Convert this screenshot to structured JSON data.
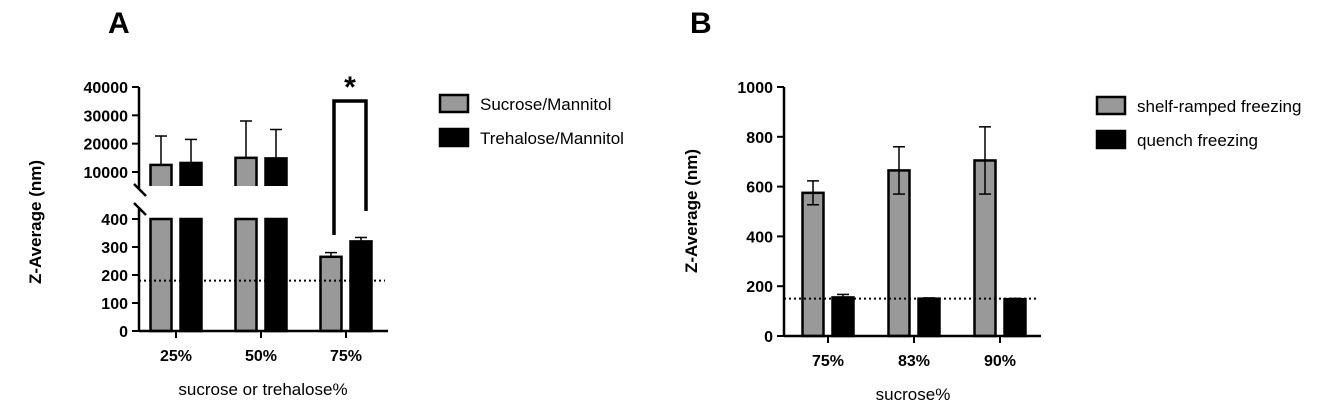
{
  "chart_data": [
    {
      "panel": "A",
      "type": "bar",
      "categories": [
        "25%",
        "50%",
        "75%"
      ],
      "xlabel": "sucrose or trehalose%",
      "ylabel": "Z-Average (nm)",
      "broken_axis": true,
      "ylim_lower": [
        0,
        400
      ],
      "ylim_upper": [
        10000,
        40000
      ],
      "yticks_lower": [
        "0",
        "100",
        "200",
        "300",
        "400"
      ],
      "yticks_upper": [
        "10000",
        "20000",
        "30000",
        "40000"
      ],
      "reference_line": 180,
      "significance_label": "*",
      "legend_position": "right",
      "series": [
        {
          "name": "Sucrose/Mannitol",
          "color": "#999999",
          "values": [
            12500,
            15000,
            265
          ],
          "errors": [
            10200,
            13000,
            15
          ]
        },
        {
          "name": "Trehalose/Mannitol",
          "color": "#000000",
          "values": [
            13200,
            14800,
            320
          ],
          "errors": [
            8300,
            10200,
            14
          ]
        }
      ]
    },
    {
      "panel": "B",
      "type": "bar",
      "categories": [
        "75%",
        "83%",
        "90%"
      ],
      "xlabel": "sucrose%",
      "ylabel": "Z-Average (nm)",
      "ylim": [
        0,
        1000
      ],
      "yticks": [
        "0",
        "200",
        "400",
        "600",
        "800",
        "1000"
      ],
      "reference_line": 150,
      "legend_position": "top-right",
      "series": [
        {
          "name": "shelf-ramped freezing",
          "color": "#999999",
          "values": [
            575,
            665,
            705
          ],
          "errors": [
            48,
            95,
            135
          ]
        },
        {
          "name": "quench freezing",
          "color": "#000000",
          "values": [
            155,
            150,
            148
          ],
          "errors": [
            12,
            3,
            3
          ]
        }
      ]
    }
  ]
}
